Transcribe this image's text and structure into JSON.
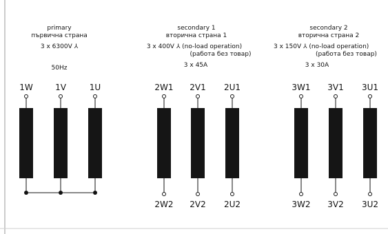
{
  "primary": {
    "title": "primary",
    "subtitle": "първична страна",
    "voltage": "3 x 6300V ⅄",
    "frequency": "50Hz",
    "terminals_top": [
      "1W",
      "1V",
      "1U"
    ]
  },
  "secondary1": {
    "title": "secondary 1",
    "subtitle": "вторична страна 1",
    "voltage": "3 x 400V ⅄ (no-load operation)",
    "note": "(работа без товар)",
    "current": "3 x 45A",
    "terminals_top": [
      "2W1",
      "2V1",
      "2U1"
    ],
    "terminals_bottom": [
      "2W2",
      "2V2",
      "2U2"
    ]
  },
  "secondary2": {
    "title": "secondary 2",
    "subtitle": "вторична страна 2",
    "voltage": "3 x 150V ⅄ (no-load operation)",
    "note": "(работа без товар)",
    "current": "3 x 30A",
    "terminals_top": [
      "3W1",
      "3V1",
      "3U1"
    ],
    "terminals_bottom": [
      "3W2",
      "3V2",
      "3U2"
    ]
  },
  "colors": {
    "ink": "#111111",
    "coil": "#151515",
    "frame": "#9a9a9a"
  }
}
